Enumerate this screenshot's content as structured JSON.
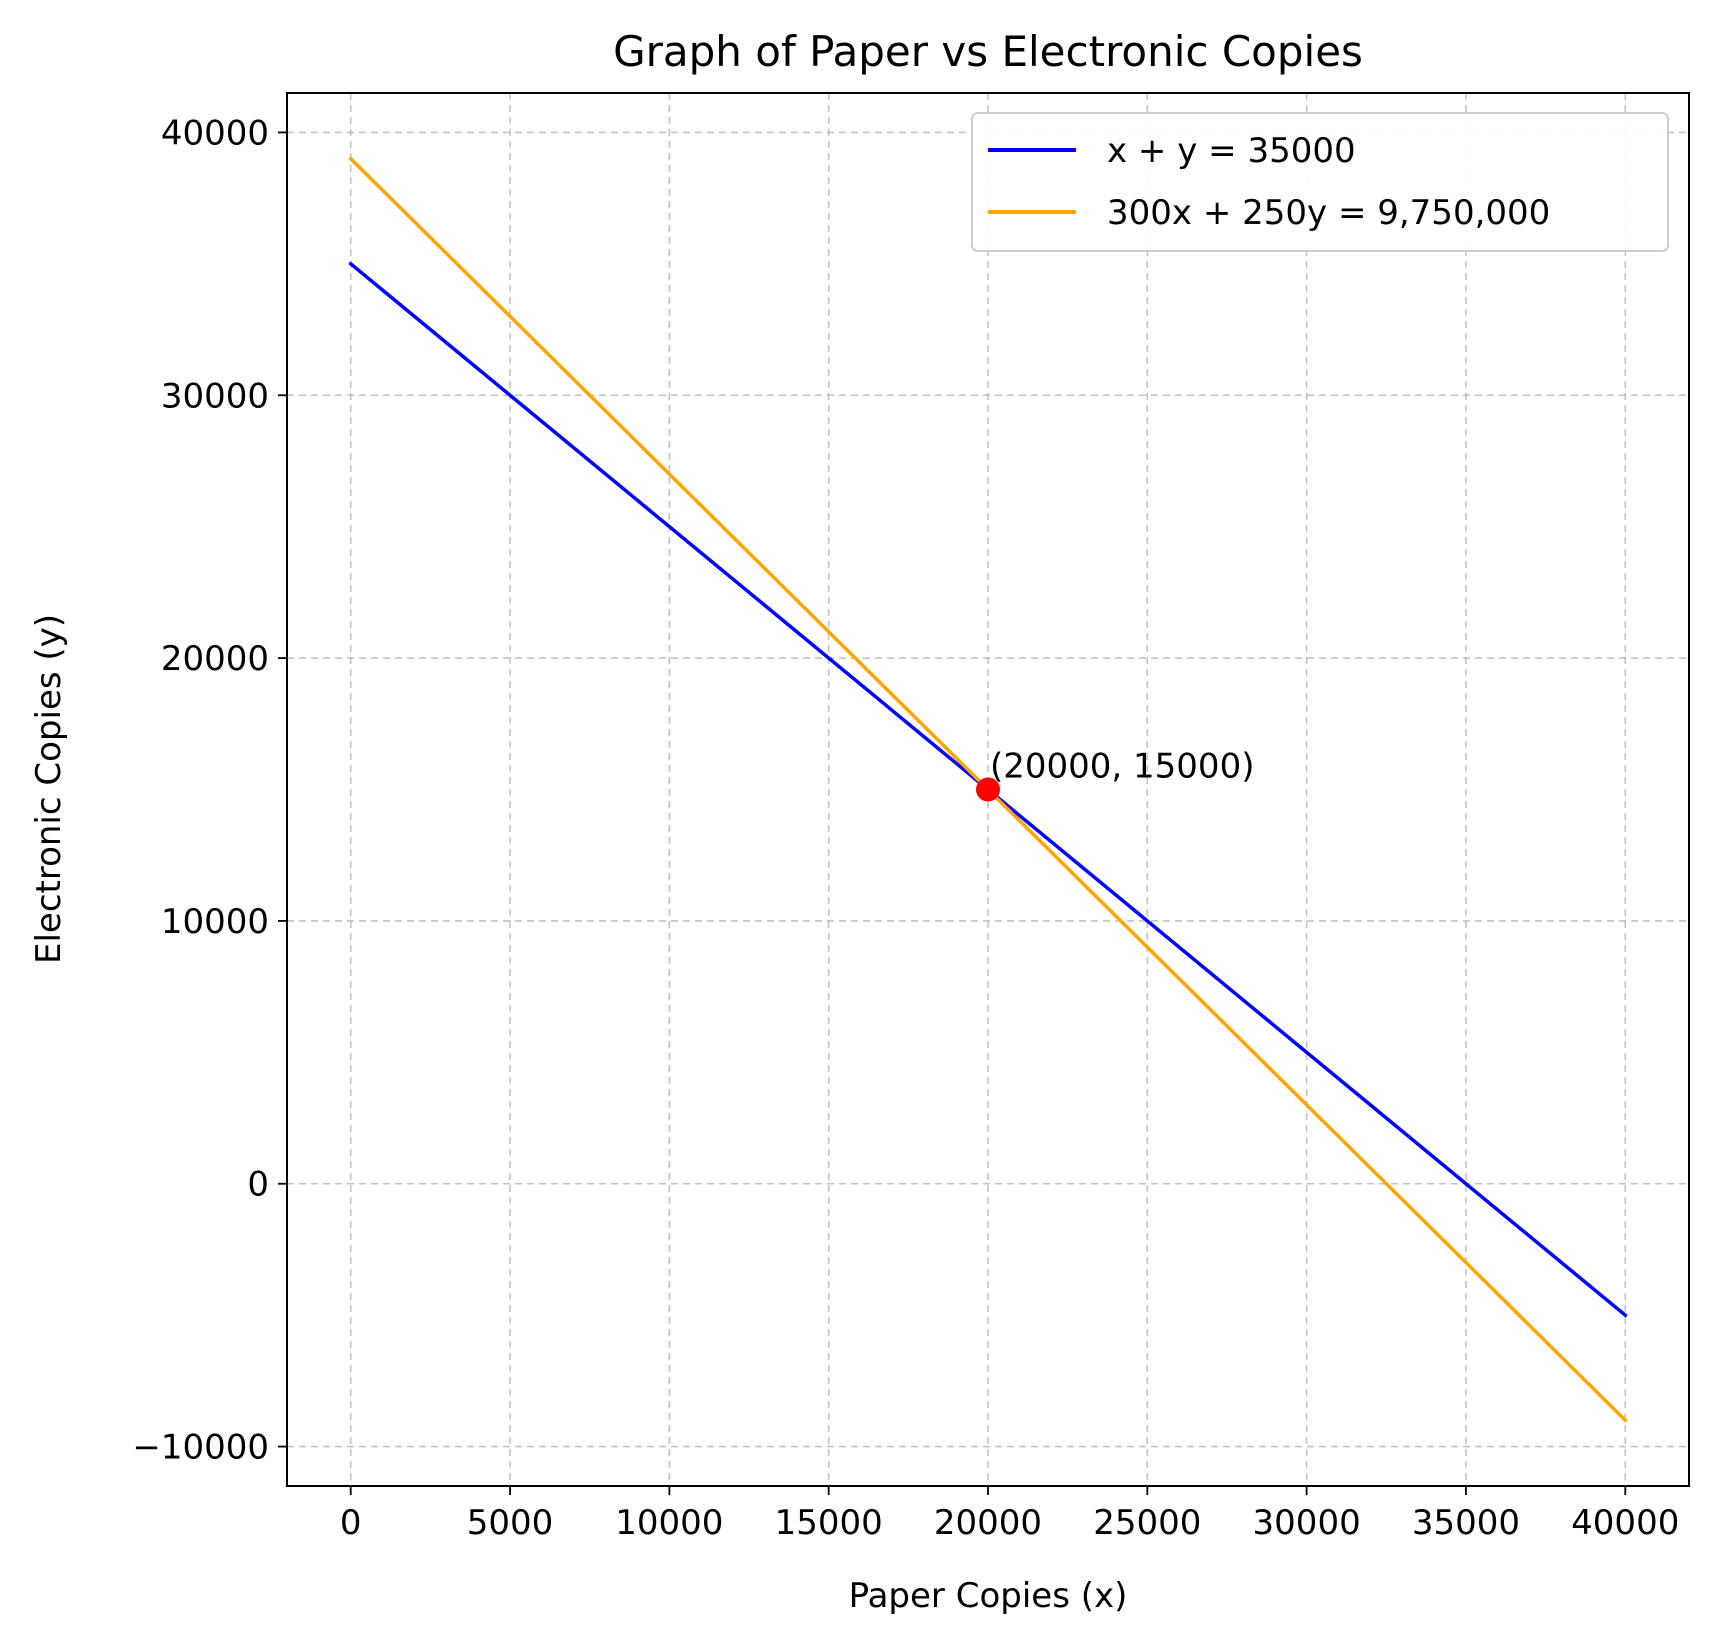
{
  "chart_data": {
    "type": "line",
    "title": "Graph of Paper vs Electronic Copies",
    "xlabel": "Paper Copies (x)",
    "ylabel": "Electronic Copies (y)",
    "xlim": [
      -2000,
      42000
    ],
    "ylim": [
      -11500,
      41500
    ],
    "x_ticks": [
      0,
      5000,
      10000,
      15000,
      20000,
      25000,
      30000,
      35000,
      40000
    ],
    "x_tick_labels": [
      "0",
      "5000",
      "10000",
      "15000",
      "20000",
      "25000",
      "30000",
      "35000",
      "40000"
    ],
    "y_ticks": [
      -10000,
      0,
      10000,
      20000,
      30000,
      40000
    ],
    "y_tick_labels": [
      "−10000",
      "0",
      "10000",
      "20000",
      "30000",
      "40000"
    ],
    "grid": true,
    "legend_position": "top-right",
    "series": [
      {
        "name": "x + y = 35000",
        "color": "#0000ff",
        "x": [
          0,
          40000
        ],
        "y": [
          35000,
          -5000
        ]
      },
      {
        "name": "300x + 250y = 9,750,000",
        "color": "#ffa500",
        "x": [
          0,
          40000
        ],
        "y": [
          39000,
          -9000
        ]
      }
    ],
    "annotations": [
      {
        "x": 20000,
        "y": 15000,
        "text": "(20000, 15000)",
        "marker_color": "#ff0000"
      }
    ]
  }
}
